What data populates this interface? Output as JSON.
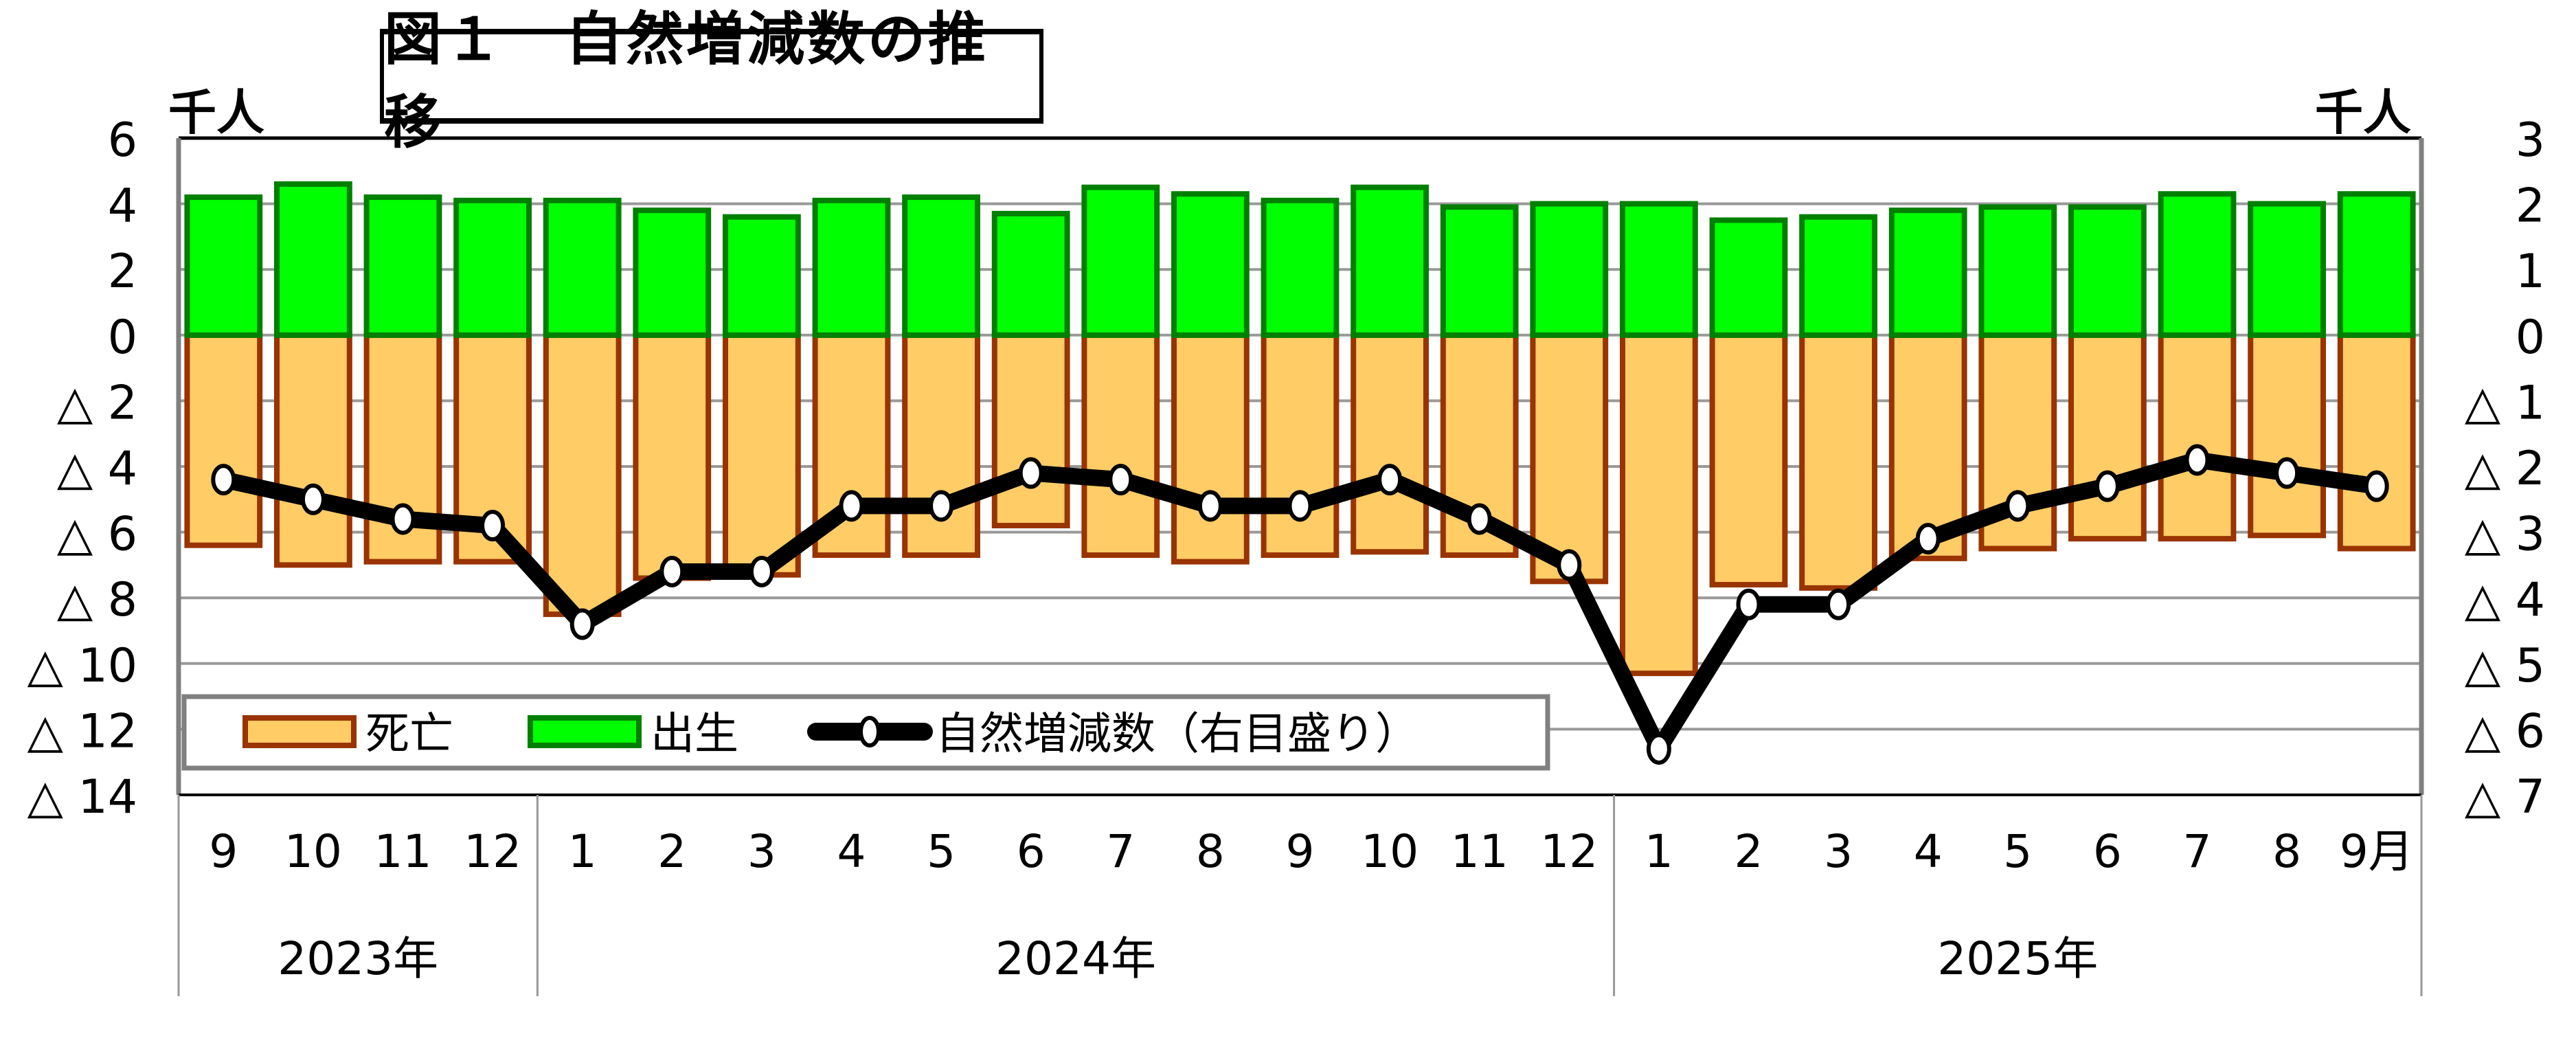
{
  "title": "図１　自然増減数の推移",
  "unit_left": "千人",
  "unit_right": "千人",
  "legend": {
    "deaths": "死亡",
    "births": "出生",
    "natural_change": "自然増減数（右目盛り）"
  },
  "colors": {
    "births_fill": "#00FF00",
    "births_stroke": "#007F00",
    "deaths_fill": "#FFCC66",
    "deaths_stroke": "#993300",
    "line": "#000000",
    "marker_fill": "#FFFFFF",
    "grid": "#999999",
    "legend_border": "#808080"
  },
  "chart_data": {
    "type": "bar",
    "title": "図１　自然増減数の推移",
    "xlabel": "",
    "ylabel": "千人",
    "y2label": "千人",
    "ylim": [
      -14,
      6
    ],
    "y2lim": [
      -7,
      3
    ],
    "yticks": [
      "6",
      "4",
      "2",
      "0",
      "△ 2",
      "△ 4",
      "△ 6",
      "△ 8",
      "△ 10",
      "△ 12",
      "△ 14"
    ],
    "y2ticks": [
      "3",
      "2",
      "1",
      "0",
      "△ 1",
      "△ 2",
      "△ 3",
      "△ 4",
      "△ 5",
      "△ 6",
      "△ 7"
    ],
    "grid": true,
    "legend_position": "lower-left inside",
    "categories": [
      "9",
      "10",
      "11",
      "12",
      "1",
      "2",
      "3",
      "4",
      "5",
      "6",
      "7",
      "8",
      "9",
      "10",
      "11",
      "12",
      "1",
      "2",
      "3",
      "4",
      "5",
      "6",
      "7",
      "8",
      "9月"
    ],
    "year_groups": [
      {
        "label": "2023年",
        "start": 0,
        "count": 4
      },
      {
        "label": "2024年",
        "start": 4,
        "count": 12
      },
      {
        "label": "2025年",
        "start": 16,
        "count": 9
      }
    ],
    "series": [
      {
        "name": "死亡",
        "type": "bar",
        "axis": "left",
        "values": [
          -6.4,
          -7.0,
          -6.9,
          -6.9,
          -8.5,
          -7.4,
          -7.3,
          -6.7,
          -6.7,
          -5.8,
          -6.7,
          -6.9,
          -6.7,
          -6.6,
          -6.7,
          -7.5,
          -10.3,
          -7.6,
          -7.7,
          -6.8,
          -6.5,
          -6.2,
          -6.2,
          -6.1,
          -6.5
        ]
      },
      {
        "name": "出生",
        "type": "bar",
        "axis": "left",
        "values": [
          4.2,
          4.6,
          4.2,
          4.1,
          4.1,
          3.8,
          3.6,
          4.1,
          4.2,
          3.7,
          4.5,
          4.3,
          4.1,
          4.5,
          3.9,
          4.0,
          4.0,
          3.5,
          3.6,
          3.8,
          3.9,
          3.9,
          4.3,
          4.0,
          4.3
        ]
      },
      {
        "name": "自然増減数（右目盛り）",
        "type": "line",
        "axis": "right",
        "values": [
          -2.2,
          -2.5,
          -2.8,
          -2.9,
          -4.4,
          -3.6,
          -3.6,
          -2.6,
          -2.6,
          -2.1,
          -2.2,
          -2.6,
          -2.6,
          -2.2,
          -2.8,
          -3.5,
          -6.3,
          -4.1,
          -4.1,
          -3.1,
          -2.6,
          -2.3,
          -1.9,
          -2.1,
          -2.3
        ]
      }
    ]
  }
}
